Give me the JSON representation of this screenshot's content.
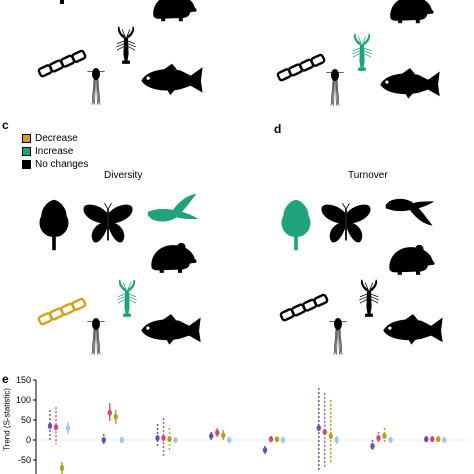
{
  "colors": {
    "decrease": "#d4a017",
    "increase": "#1fa37a",
    "no_change": "#000000",
    "violet": "#6b4fb0",
    "pink": "#d4477a",
    "olive": "#b3a21a",
    "lightblue": "#9cc8e8"
  },
  "panels": {
    "c": {
      "letter": "c",
      "title": "Diversity"
    },
    "d": {
      "letter": "d",
      "title": "Turnover"
    },
    "e": {
      "letter": "e"
    }
  },
  "legend": {
    "decrease": "Decrease",
    "increase": "Increase",
    "no_change": "No changes"
  },
  "organisms": {
    "top_left": [
      "rodent-icon",
      "diatom-icon",
      "crayfish-icon",
      "copepod-icon",
      "fish-icon"
    ],
    "top_right": [
      "rodent-icon",
      "diatom-icon",
      "crayfish-icon",
      "copepod-icon",
      "fish-icon"
    ],
    "c_panel": [
      "tree-icon",
      "butterfly-icon",
      "bird-icon",
      "rodent-icon",
      "diatom-icon",
      "crayfish-icon",
      "copepod-icon",
      "fish-icon"
    ],
    "d_panel": [
      "tree-icon",
      "butterfly-icon",
      "bird-icon",
      "rodent-icon",
      "diatom-icon",
      "crayfish-icon",
      "copepod-icon",
      "fish-icon"
    ]
  },
  "icon_status": {
    "top_left_crayfish": "no_change",
    "top_right_crayfish": "increase",
    "c_tree": "no_change",
    "c_butterfly": "no_change",
    "c_bird": "increase",
    "c_rodent": "no_change",
    "c_diatom": "decrease",
    "c_crayfish": "increase",
    "c_copepod": "no_change",
    "c_fish": "no_change",
    "d_tree": "increase",
    "d_butterfly": "no_change",
    "d_bird": "no_change",
    "d_rodent": "no_change",
    "d_diatom": "no_change",
    "d_crayfish": "no_change",
    "d_copepod": "no_change",
    "d_fish": "no_change"
  },
  "chart_data": {
    "type": "scatter",
    "ylabel": "Trend (S-statistic)",
    "yticks": [
      150,
      100,
      50,
      0,
      -50
    ],
    "ylim": [
      -60,
      155
    ],
    "groups": [
      {
        "points": [
          {
            "color": "violet",
            "y": 35,
            "lo": -5,
            "hi": 75,
            "dashed": true
          },
          {
            "color": "pink",
            "y": 32,
            "lo": -10,
            "hi": 82,
            "dashed": true
          },
          {
            "color": "olive",
            "y": -70,
            "lo": -90,
            "hi": -55,
            "dashed": false
          },
          {
            "color": "lightblue",
            "y": 30,
            "lo": 15,
            "hi": 45,
            "dashed": false
          }
        ]
      },
      {
        "points": [
          {
            "color": "violet",
            "y": 0,
            "lo": -15,
            "hi": 15,
            "dashed": true
          },
          {
            "color": "pink",
            "y": 68,
            "lo": 48,
            "hi": 92,
            "dashed": false
          },
          {
            "color": "olive",
            "y": 58,
            "lo": 40,
            "hi": 75,
            "dashed": false
          },
          {
            "color": "lightblue",
            "y": 0,
            "lo": -5,
            "hi": 5,
            "dashed": false
          }
        ]
      },
      {
        "points": [
          {
            "color": "violet",
            "y": 5,
            "lo": -20,
            "hi": 40,
            "dashed": true
          },
          {
            "color": "pink",
            "y": 5,
            "lo": -45,
            "hi": 55,
            "dashed": true
          },
          {
            "color": "olive",
            "y": 2,
            "lo": -25,
            "hi": 30,
            "dashed": true
          },
          {
            "color": "lightblue",
            "y": 0,
            "lo": -5,
            "hi": 5,
            "dashed": false
          }
        ]
      },
      {
        "points": [
          {
            "color": "violet",
            "y": 10,
            "lo": 0,
            "hi": 20,
            "dashed": false
          },
          {
            "color": "pink",
            "y": 18,
            "lo": 8,
            "hi": 30,
            "dashed": false
          },
          {
            "color": "olive",
            "y": 12,
            "lo": 0,
            "hi": 25,
            "dashed": false
          },
          {
            "color": "lightblue",
            "y": 0,
            "lo": -5,
            "hi": 5,
            "dashed": false
          }
        ]
      },
      {
        "points": [
          {
            "color": "violet",
            "y": -25,
            "lo": -35,
            "hi": -15,
            "dashed": false
          },
          {
            "color": "pink",
            "y": 2,
            "lo": -5,
            "hi": 10,
            "dashed": false
          },
          {
            "color": "olive",
            "y": 2,
            "lo": -3,
            "hi": 8,
            "dashed": false
          },
          {
            "color": "lightblue",
            "y": 0,
            "lo": -5,
            "hi": 5,
            "dashed": false
          }
        ]
      },
      {
        "points": [
          {
            "color": "violet",
            "y": 30,
            "lo": -80,
            "hi": 130,
            "dashed": true
          },
          {
            "color": "pink",
            "y": 20,
            "lo": -70,
            "hi": 118,
            "dashed": true
          },
          {
            "color": "olive",
            "y": 10,
            "lo": -60,
            "hi": 100,
            "dashed": true
          },
          {
            "color": "lightblue",
            "y": 0,
            "lo": -10,
            "hi": 10,
            "dashed": false
          }
        ]
      },
      {
        "points": [
          {
            "color": "violet",
            "y": -15,
            "lo": -30,
            "hi": 0,
            "dashed": true
          },
          {
            "color": "pink",
            "y": 5,
            "lo": -10,
            "hi": 20,
            "dashed": true
          },
          {
            "color": "olive",
            "y": 10,
            "lo": -5,
            "hi": 30,
            "dashed": true
          },
          {
            "color": "lightblue",
            "y": 0,
            "lo": -5,
            "hi": 5,
            "dashed": false
          }
        ]
      },
      {
        "points": [
          {
            "color": "violet",
            "y": 2,
            "lo": -5,
            "hi": 10,
            "dashed": false
          },
          {
            "color": "pink",
            "y": 2,
            "lo": -5,
            "hi": 10,
            "dashed": false
          },
          {
            "color": "olive",
            "y": 2,
            "lo": -5,
            "hi": 10,
            "dashed": false
          },
          {
            "color": "lightblue",
            "y": 0,
            "lo": -5,
            "hi": 5,
            "dashed": false
          }
        ]
      }
    ]
  }
}
